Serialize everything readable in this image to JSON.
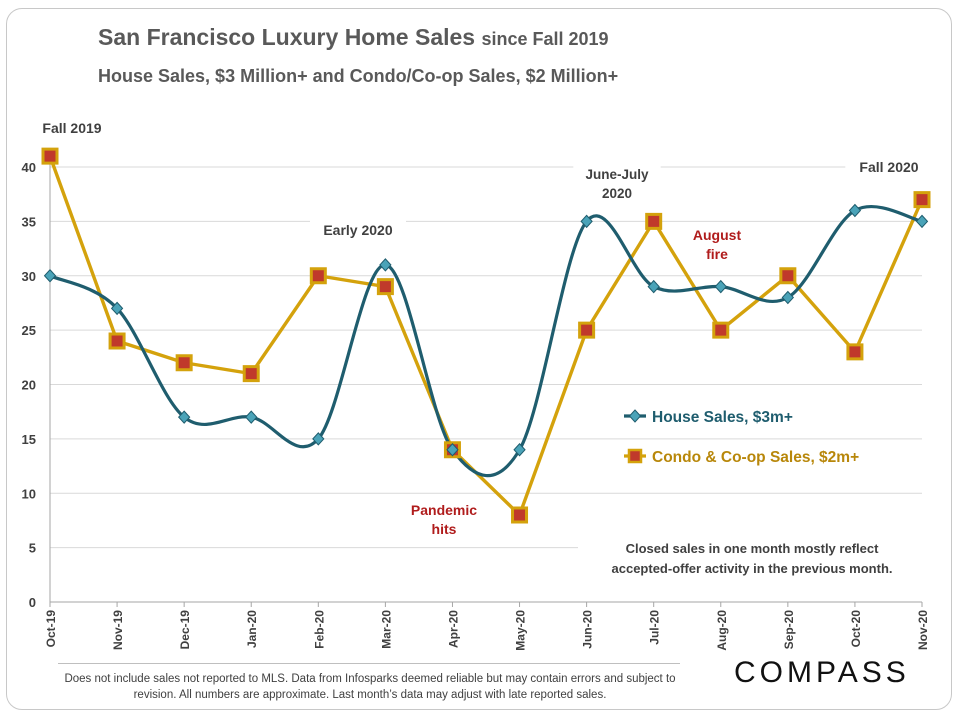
{
  "title": {
    "main": "San Francisco Luxury Home Sales",
    "suffix": "since Fall 2019"
  },
  "subtitle": "House Sales, $3 Million+ and Condo/Co-op  Sales, $2 Million+",
  "chart_data": {
    "type": "line",
    "categories": [
      "Oct-19",
      "Nov-19",
      "Dec-19",
      "Jan-20",
      "Feb-20",
      "Mar-20",
      "Apr-20",
      "May-20",
      "Jun-20",
      "Jul-20",
      "Aug-20",
      "Sep-20",
      "Oct-20",
      "Nov-20"
    ],
    "series": [
      {
        "name": "House Sales, $3m+",
        "color": "#1f5d6e",
        "marker": "diamond",
        "marker_color": "#4aa3b8",
        "smooth": true,
        "values": [
          30,
          27,
          17,
          17,
          15,
          31,
          14,
          14,
          35,
          29,
          29,
          28,
          36,
          35
        ]
      },
      {
        "name": "Condo & Co-op Sales, $2m+",
        "color": "#d4a20c",
        "marker": "square",
        "marker_color": "#c0392b",
        "smooth": false,
        "values": [
          41,
          24,
          22,
          21,
          30,
          29,
          14,
          8,
          25,
          35,
          25,
          30,
          23,
          37
        ]
      }
    ],
    "ylim": [
      0,
      40
    ],
    "yticks": [
      0,
      5,
      10,
      15,
      20,
      25,
      30,
      35,
      40
    ],
    "grid": true,
    "legend": "right",
    "annotations": [
      {
        "text": "Fall 2019",
        "color": "#404040"
      },
      {
        "text": "Early 2020",
        "color": "#404040"
      },
      {
        "text": "June-July\n2020",
        "color": "#404040"
      },
      {
        "text": "August\nfire",
        "color": "#b01c1c"
      },
      {
        "text": "Fall 2020",
        "color": "#404040"
      },
      {
        "text": "Pandemic\nhits",
        "color": "#b01c1c"
      }
    ],
    "note": "Closed sales in one month mostly reflect\naccepted-offer activity in the previous month."
  },
  "footnote": "Does not include sales not reported to MLS. Data from Infosparks deemed reliable but may contain errors and subject to revision.  All numbers are approximate. Last month’s data may adjust with late reported sales.",
  "logo": "COMPASS"
}
